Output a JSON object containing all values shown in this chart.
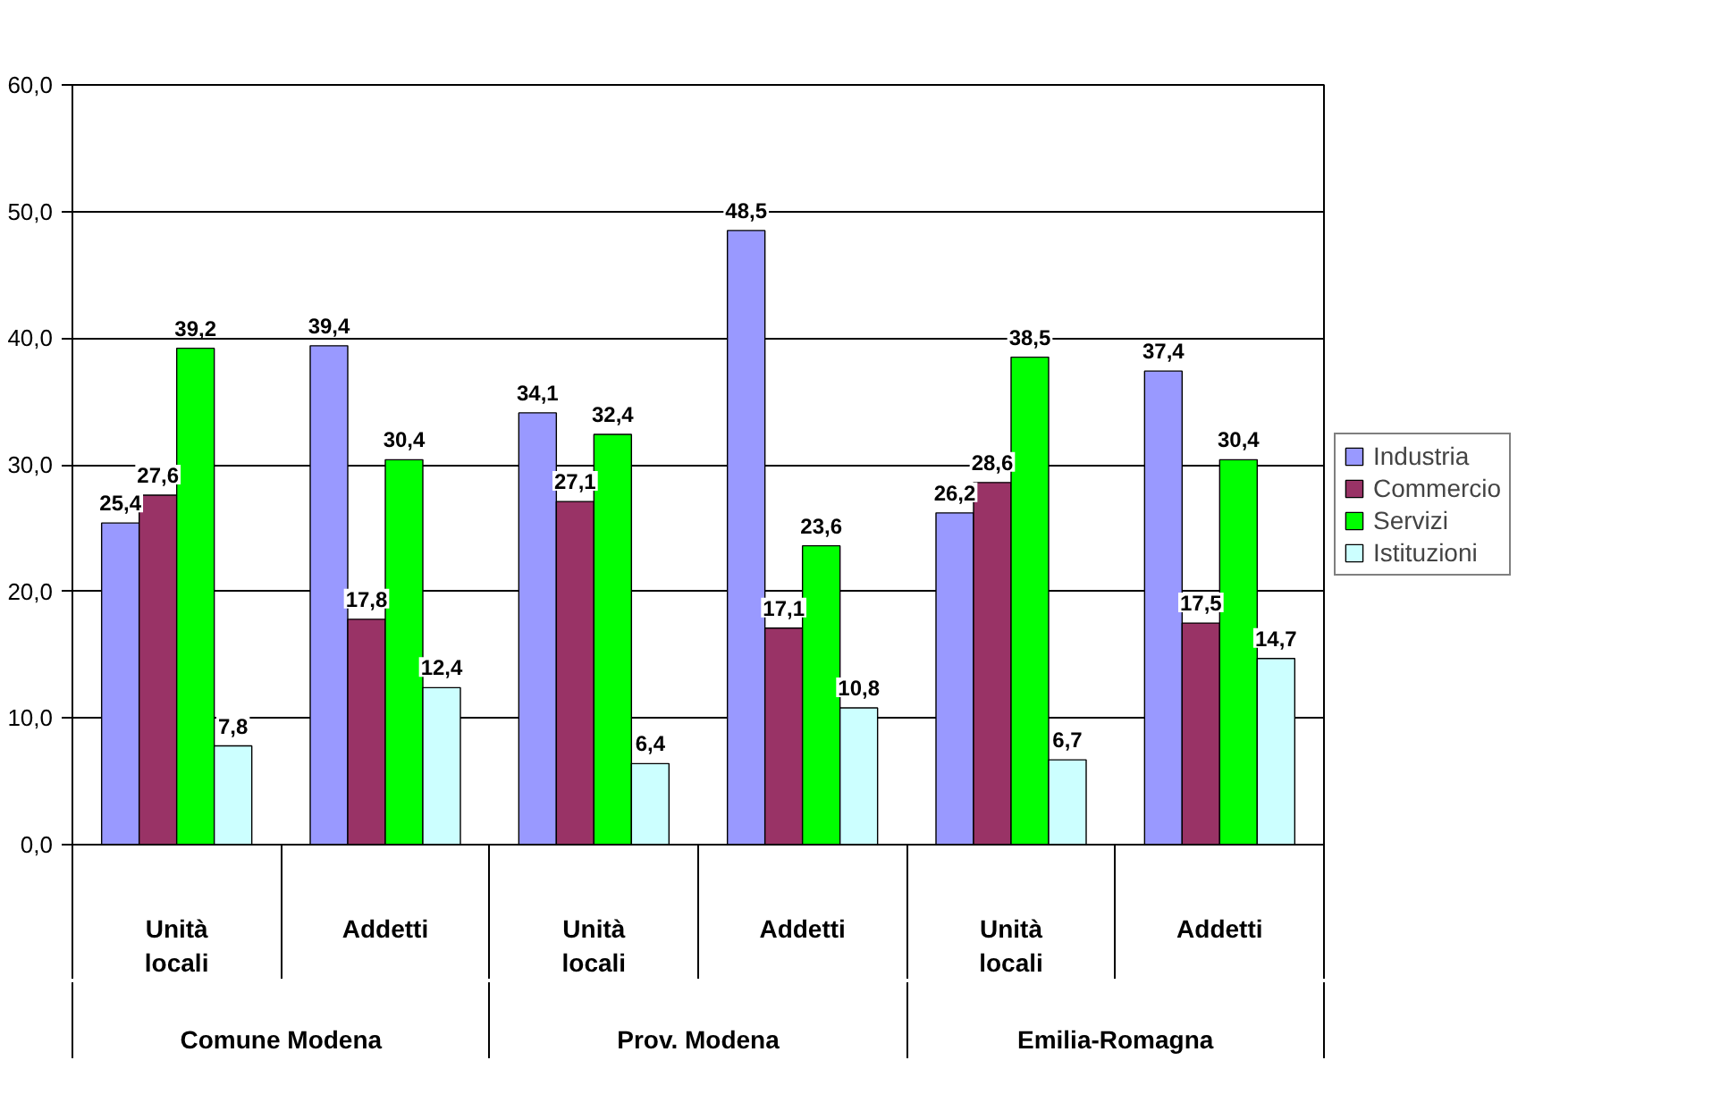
{
  "chart_data": {
    "type": "bar",
    "categories": [
      "Unità locali",
      "Addetti",
      "Unità locali",
      "Addetti",
      "Unità locali",
      "Addetti"
    ],
    "annotations": [
      "Comune Modena",
      "Prov. Modena",
      "Emilia-Romagna"
    ],
    "series": [
      {
        "name": "Industria",
        "color": "#9999ff",
        "values": [
          25.4,
          39.4,
          34.1,
          48.5,
          26.2,
          37.4
        ],
        "value_labels": [
          "25,4",
          "39,4",
          "34,1",
          "48,5",
          "26,2",
          "37,4"
        ]
      },
      {
        "name": "Commercio",
        "color": "#993366",
        "values": [
          27.6,
          17.8,
          27.1,
          17.1,
          28.6,
          17.5
        ],
        "value_labels": [
          "27,6",
          "17,8",
          "27,1",
          "17,1",
          "28,6",
          "17,5"
        ]
      },
      {
        "name": "Servizi",
        "color": "#00ff00",
        "values": [
          39.2,
          30.4,
          32.4,
          23.6,
          38.5,
          30.4
        ],
        "value_labels": [
          "39,2",
          "30,4",
          "32,4",
          "23,6",
          "38,5",
          "30,4"
        ]
      },
      {
        "name": "Istituzioni",
        "color": "#ccffff",
        "values": [
          7.8,
          12.4,
          6.4,
          10.8,
          6.7,
          14.7
        ],
        "value_labels": [
          "7,8",
          "12,4",
          "6,4",
          "10,8",
          "6,7",
          "14,7"
        ]
      }
    ],
    "ylim": [
      0,
      60
    ],
    "yticks": [
      {
        "value": 0,
        "label": "0,0"
      },
      {
        "value": 10,
        "label": "10,0"
      },
      {
        "value": 20,
        "label": "20,0"
      },
      {
        "value": 30,
        "label": "30,0"
      },
      {
        "value": 40,
        "label": "40,0"
      },
      {
        "value": 50,
        "label": "50,0"
      },
      {
        "value": 60,
        "label": "60,0"
      }
    ],
    "grid": "y",
    "legend": "right"
  }
}
